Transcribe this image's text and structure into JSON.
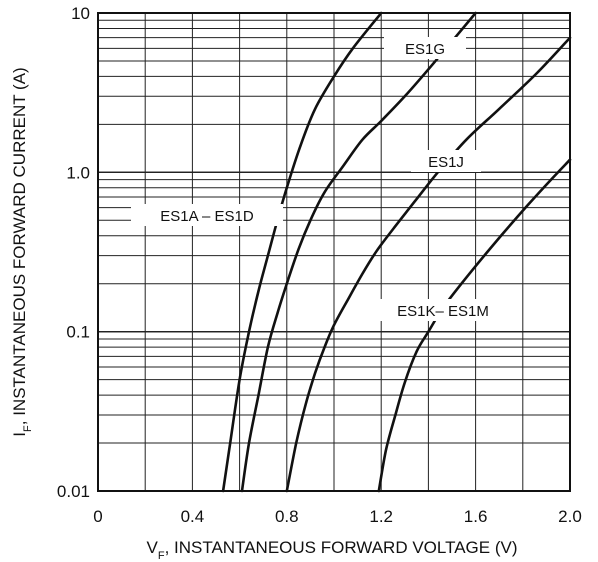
{
  "chart_data": {
    "type": "line",
    "title": "",
    "xlabel": {
      "prefix": "V",
      "sub": "F",
      "rest": ", INSTANTANEOUS FORWARD VOLTAGE (V)"
    },
    "ylabel": {
      "prefix": "I",
      "sub": "F",
      "rest": ", INSTANTANEOUS FORWARD CURRENT (A)"
    },
    "xlim": [
      0,
      2.0
    ],
    "ylim": [
      0.01,
      10
    ],
    "yscale": "log",
    "grid": true,
    "x_ticks": [
      {
        "value": 0,
        "label": "0"
      },
      {
        "value": 0.4,
        "label": "0.4"
      },
      {
        "value": 0.8,
        "label": "0.8"
      },
      {
        "value": 1.2,
        "label": "1.2"
      },
      {
        "value": 1.6,
        "label": "1.6"
      },
      {
        "value": 2.0,
        "label": "2.0"
      }
    ],
    "y_ticks": [
      {
        "value": 0.01,
        "label": "0.01"
      },
      {
        "value": 0.1,
        "label": "0.1"
      },
      {
        "value": 1.0,
        "label": "1.0"
      },
      {
        "value": 10,
        "label": "10"
      }
    ],
    "series": [
      {
        "name": "ES1A – ES1D",
        "x": [
          0.53,
          0.56,
          0.6,
          0.64,
          0.68,
          0.72,
          0.76,
          0.8,
          0.86,
          0.92,
          1.0,
          1.08,
          1.2
        ],
        "y": [
          0.01,
          0.02,
          0.05,
          0.1,
          0.18,
          0.3,
          0.5,
          0.8,
          1.5,
          2.5,
          4.0,
          6.0,
          10
        ]
      },
      {
        "name": "ES1G",
        "x": [
          0.61,
          0.64,
          0.68,
          0.72,
          0.76,
          0.8,
          0.85,
          0.9,
          0.96,
          1.04,
          1.12,
          1.2,
          1.3,
          1.42,
          1.6
        ],
        "y": [
          0.01,
          0.02,
          0.04,
          0.08,
          0.13,
          0.2,
          0.33,
          0.5,
          0.75,
          1.1,
          1.6,
          2.1,
          3.0,
          4.8,
          10
        ]
      },
      {
        "name": "ES1J",
        "x": [
          0.8,
          0.84,
          0.88,
          0.92,
          0.96,
          1.0,
          1.06,
          1.12,
          1.18,
          1.26,
          1.34,
          1.44,
          1.56,
          1.7,
          1.86,
          2.0
        ],
        "y": [
          0.01,
          0.02,
          0.035,
          0.055,
          0.08,
          0.11,
          0.16,
          0.23,
          0.32,
          0.46,
          0.65,
          1.0,
          1.6,
          2.5,
          4.2,
          7.0
        ]
      },
      {
        "name": "ES1K– ES1M",
        "x": [
          1.19,
          1.22,
          1.26,
          1.3,
          1.35,
          1.4,
          1.46,
          1.54,
          1.62,
          1.72,
          1.82,
          1.92,
          2.0
        ],
        "y": [
          0.01,
          0.018,
          0.03,
          0.048,
          0.075,
          0.1,
          0.14,
          0.2,
          0.28,
          0.42,
          0.62,
          0.9,
          1.2
        ]
      }
    ]
  }
}
